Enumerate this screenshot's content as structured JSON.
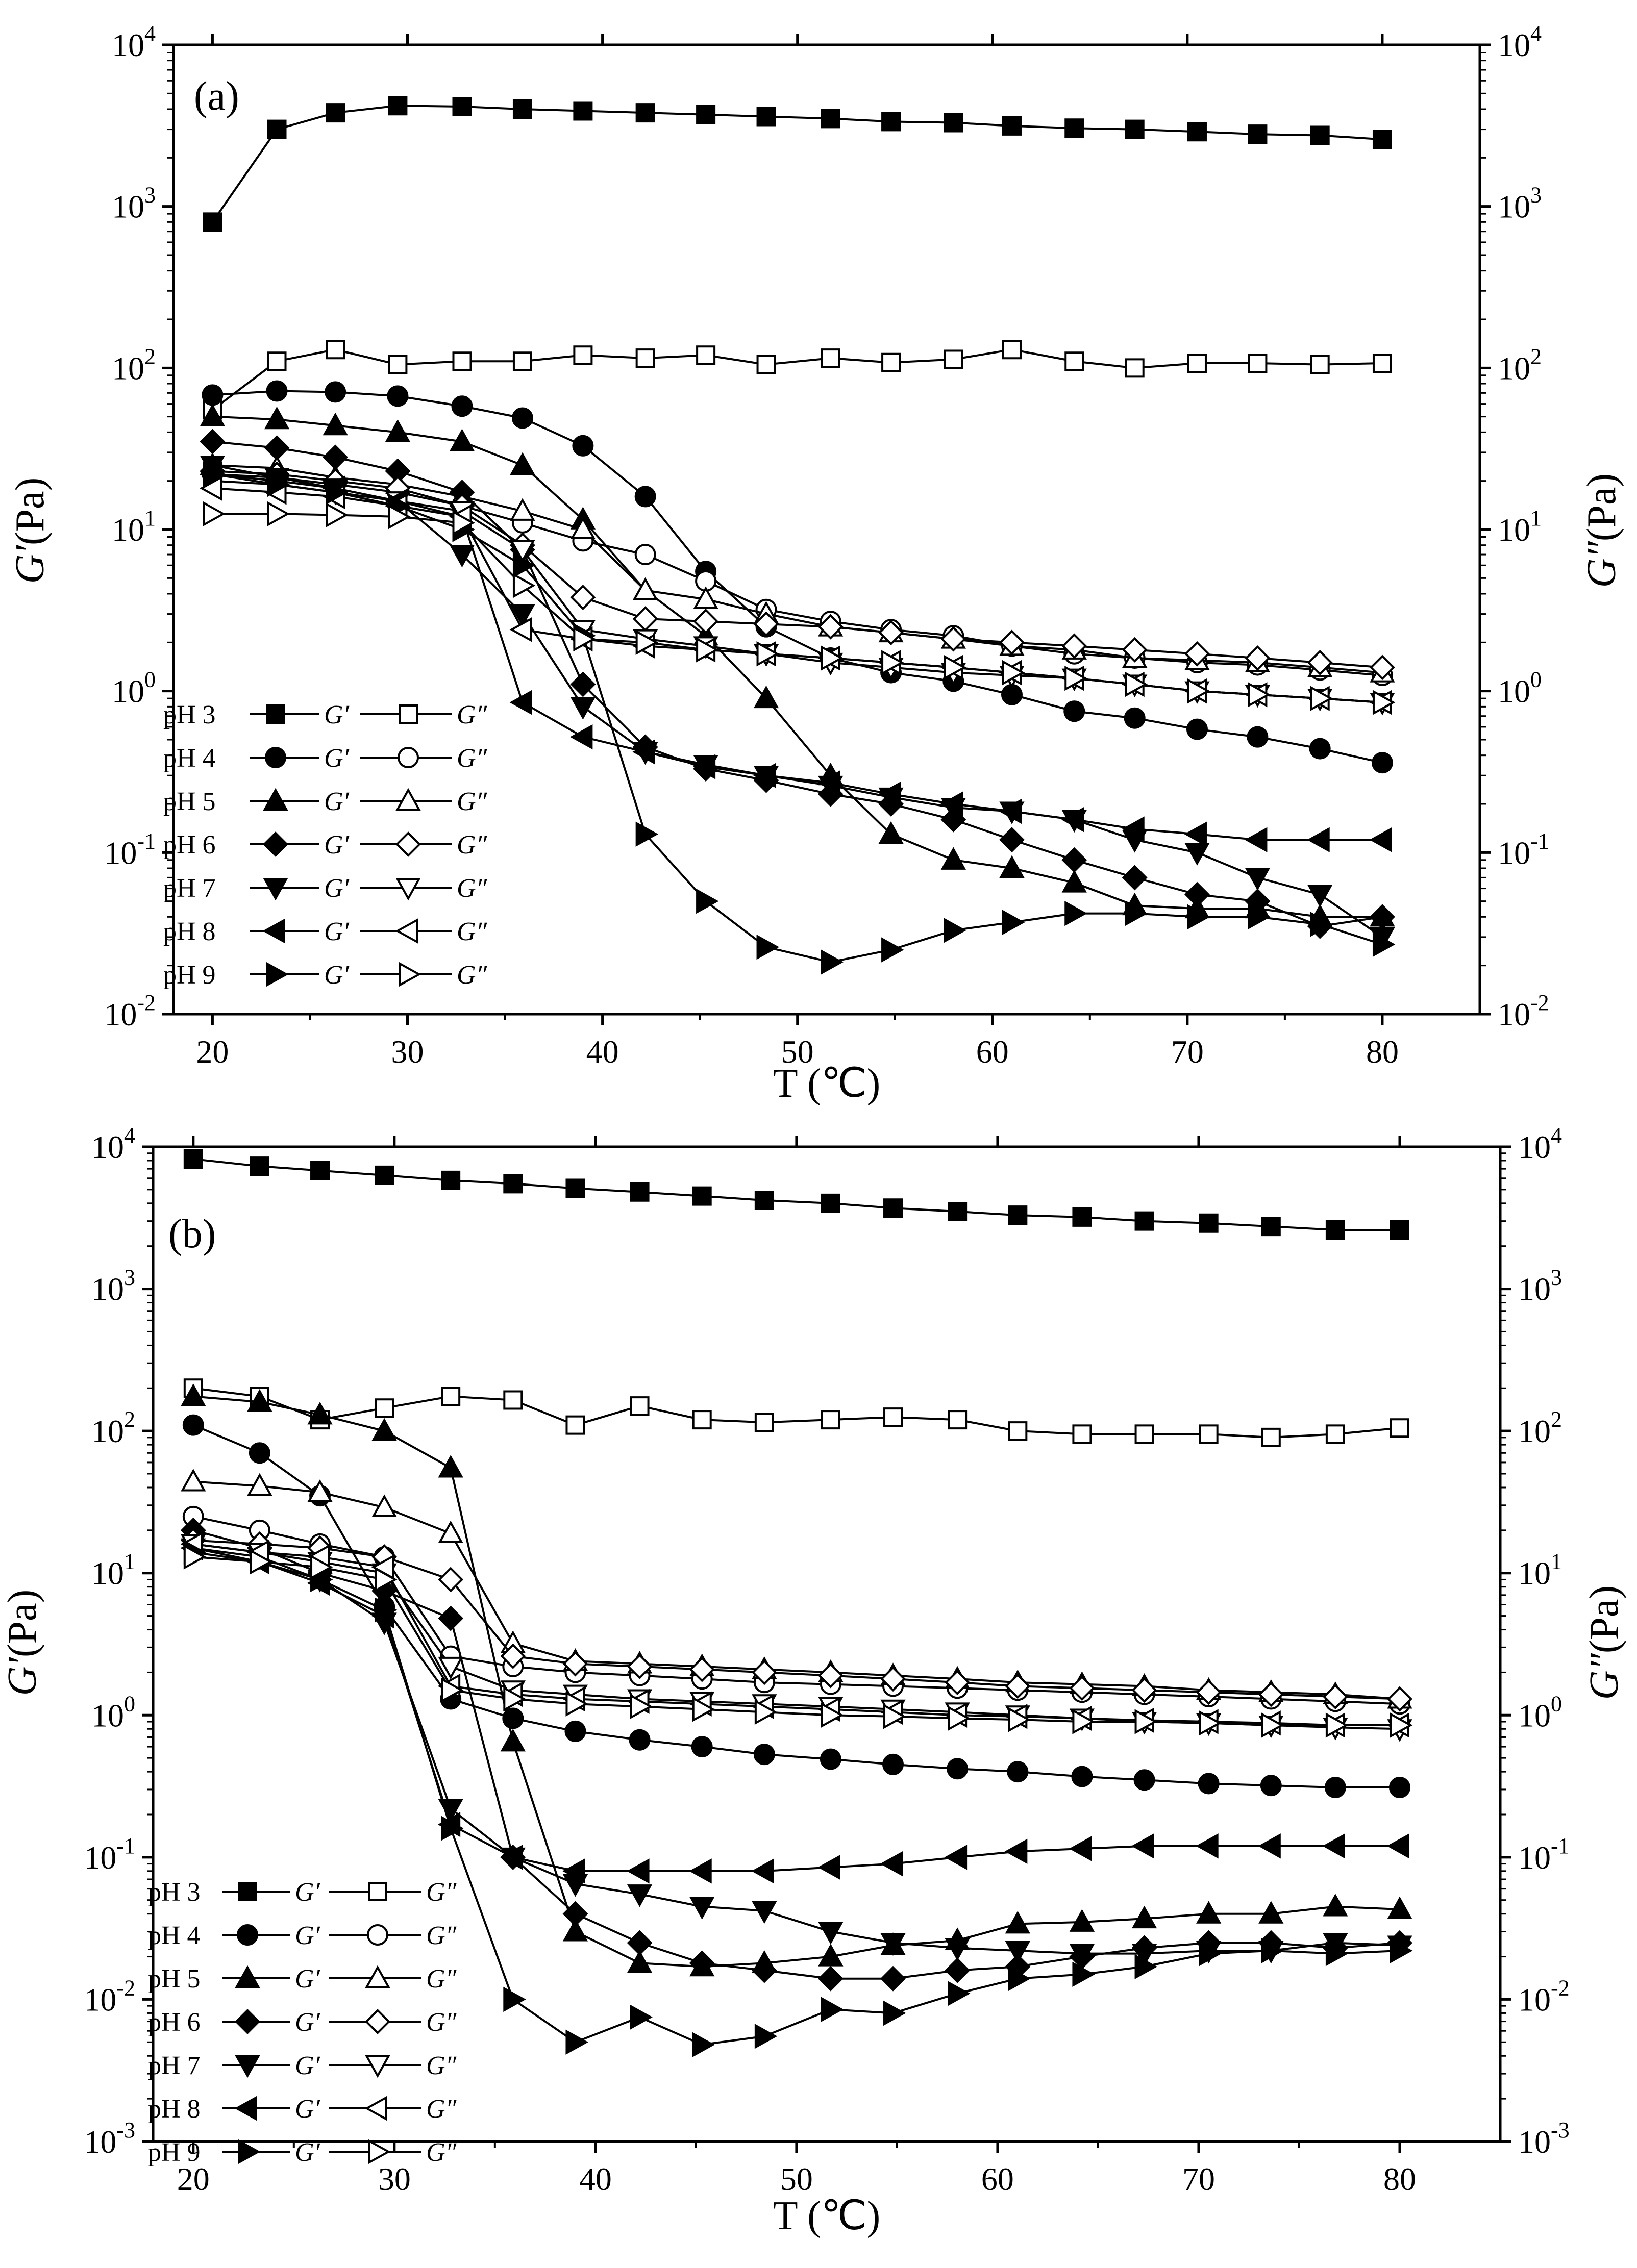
{
  "chart_data": [
    {
      "type": "line",
      "panel_label": "(a)",
      "xlabel": "T (℃)",
      "ylabel_left": {
        "sym": "G′",
        "unit": "(Pa)"
      },
      "ylabel_right": {
        "sym": "G″",
        "unit": "(Pa)"
      },
      "xlim": [
        18,
        85
      ],
      "ylim_log": [
        -2,
        4
      ],
      "yscale": "log",
      "xticks": [
        "20",
        "30",
        "40",
        "50",
        "60",
        "70",
        "80"
      ],
      "xtick_values": [
        20,
        30,
        40,
        50,
        60,
        70,
        80
      ],
      "yticks": [
        {
          "exp": -2,
          "base": "10",
          "sup": "-2"
        },
        {
          "exp": -1,
          "base": "10",
          "sup": "-1"
        },
        {
          "exp": 0,
          "base": "10",
          "sup": "0"
        },
        {
          "exp": 1,
          "base": "10",
          "sup": "1"
        },
        {
          "exp": 2,
          "base": "10",
          "sup": "2"
        },
        {
          "exp": 3,
          "base": "10",
          "sup": "3"
        },
        {
          "exp": 4,
          "base": "10",
          "sup": "4"
        }
      ],
      "legend_position": "lower-left",
      "legend": [
        {
          "label": "pH 3",
          "marker": "square"
        },
        {
          "label": "pH 4",
          "marker": "circle"
        },
        {
          "label": "pH 5",
          "marker": "tri-up"
        },
        {
          "label": "pH 6",
          "marker": "diamond"
        },
        {
          "label": "pH 7",
          "marker": "tri-down"
        },
        {
          "label": "pH 8",
          "marker": "tri-left"
        },
        {
          "label": "pH 9",
          "marker": "tri-right"
        }
      ],
      "legend_gp": "G′",
      "legend_gpp": "G″",
      "x": [
        20,
        23.3,
        26.3,
        29.5,
        32.8,
        35.9,
        39.0,
        42.2,
        45.3,
        48.4,
        51.7,
        54.8,
        58.0,
        61.0,
        64.2,
        67.3,
        70.5,
        73.6,
        76.8,
        80.0
      ],
      "series": [
        {
          "name": "pH 3 G′",
          "marker": "square",
          "filled": true,
          "values": [
            800,
            3000,
            3800,
            4200,
            4150,
            4000,
            3900,
            3800,
            3700,
            3600,
            3500,
            3350,
            3300,
            3150,
            3050,
            3000,
            2900,
            2800,
            2750,
            2600
          ]
        },
        {
          "name": "pH 3 G″",
          "marker": "square",
          "filled": false,
          "values": [
            55,
            110,
            130,
            105,
            110,
            110,
            120,
            115,
            120,
            105,
            115,
            108,
            113,
            130,
            110,
            100,
            107,
            107,
            105,
            107
          ]
        },
        {
          "name": "pH 4 G′",
          "marker": "circle",
          "filled": true,
          "values": [
            68,
            72,
            71,
            67,
            58,
            49,
            33,
            16,
            5.5,
            2.5,
            1.6,
            1.3,
            1.15,
            0.95,
            0.75,
            0.68,
            0.58,
            0.52,
            0.44,
            0.36
          ]
        },
        {
          "name": "pH 4 G″",
          "marker": "circle",
          "filled": false,
          "values": [
            22,
            21,
            19,
            17,
            14,
            11,
            8.5,
            7.0,
            4.8,
            3.2,
            2.7,
            2.4,
            2.2,
            1.9,
            1.7,
            1.6,
            1.5,
            1.45,
            1.35,
            1.25
          ]
        },
        {
          "name": "pH 5 G′",
          "marker": "tri-up",
          "filled": true,
          "values": [
            50,
            48,
            44,
            40,
            35,
            25,
            11.5,
            4.2,
            2.2,
            0.9,
            0.3,
            0.13,
            0.09,
            0.08,
            0.065,
            0.047,
            0.045,
            0.045,
            0.04,
            0.04
          ]
        },
        {
          "name": "pH 5 G″",
          "marker": "tri-up",
          "filled": false,
          "values": [
            25,
            24,
            21,
            19,
            16,
            13,
            10,
            4.2,
            3.7,
            3.0,
            2.5,
            2.3,
            2.1,
            1.9,
            1.8,
            1.6,
            1.55,
            1.5,
            1.4,
            1.3
          ]
        },
        {
          "name": "pH 6 G′",
          "marker": "diamond",
          "filled": true,
          "values": [
            35,
            32,
            28,
            23,
            17,
            7.5,
            1.1,
            0.45,
            0.33,
            0.28,
            0.23,
            0.2,
            0.16,
            0.12,
            0.09,
            0.07,
            0.055,
            0.05,
            0.035,
            0.04
          ]
        },
        {
          "name": "pH 6 G″",
          "marker": "diamond",
          "filled": false,
          "values": [
            23,
            22,
            20,
            18,
            14,
            8,
            3.8,
            2.8,
            2.7,
            2.6,
            2.5,
            2.3,
            2.1,
            2.0,
            1.9,
            1.8,
            1.7,
            1.6,
            1.5,
            1.4
          ]
        },
        {
          "name": "pH 7 G′",
          "marker": "tri-down",
          "filled": true,
          "values": [
            25,
            21,
            18,
            15,
            7.0,
            3.0,
            0.8,
            0.42,
            0.35,
            0.3,
            0.26,
            0.22,
            0.19,
            0.18,
            0.16,
            0.12,
            0.1,
            0.07,
            0.055,
            0.03
          ]
        },
        {
          "name": "pH 7 G″",
          "marker": "tri-down",
          "filled": false,
          "values": [
            20,
            19,
            17,
            15,
            13,
            7.5,
            2.4,
            2.1,
            1.9,
            1.7,
            1.5,
            1.4,
            1.3,
            1.25,
            1.2,
            1.1,
            1.0,
            0.95,
            0.9,
            0.85
          ]
        },
        {
          "name": "pH 8 G′",
          "marker": "tri-left",
          "filled": true,
          "values": [
            22,
            20,
            18,
            15,
            12,
            0.85,
            0.52,
            0.42,
            0.34,
            0.3,
            0.27,
            0.23,
            0.2,
            0.18,
            0.16,
            0.14,
            0.13,
            0.12,
            0.12,
            0.12
          ]
        },
        {
          "name": "pH 8 G″",
          "marker": "tri-left",
          "filled": false,
          "values": [
            18,
            17,
            16,
            14,
            12,
            2.4,
            2.1,
            1.9,
            1.8,
            1.7,
            1.6,
            1.5,
            1.4,
            1.3,
            1.2,
            1.1,
            1.0,
            0.95,
            0.9,
            0.85
          ]
        },
        {
          "name": "pH 9 G′",
          "marker": "tri-right",
          "filled": true,
          "values": [
            22,
            19,
            17,
            14,
            10,
            6.0,
            2.2,
            0.13,
            0.05,
            0.026,
            0.021,
            0.025,
            0.033,
            0.037,
            0.042,
            0.042,
            0.04,
            0.04,
            0.036,
            0.027
          ]
        },
        {
          "name": "pH 9 G″",
          "marker": "tri-right",
          "filled": false,
          "values": [
            12.5,
            12.5,
            12.3,
            12.0,
            11,
            4.5,
            2.1,
            2.0,
            1.8,
            1.7,
            1.6,
            1.5,
            1.4,
            1.3,
            1.2,
            1.1,
            1.0,
            0.95,
            0.9,
            0.85
          ]
        }
      ]
    },
    {
      "type": "line",
      "panel_label": "(b)",
      "xlabel": "T (℃)",
      "ylabel_left": {
        "sym": "G′",
        "unit": "(Pa)"
      },
      "ylabel_right": {
        "sym": "G″",
        "unit": "(Pa)"
      },
      "xlim": [
        18,
        85
      ],
      "ylim_log": [
        -3,
        4
      ],
      "yscale": "log",
      "xticks": [
        "20",
        "30",
        "40",
        "50",
        "60",
        "70",
        "80"
      ],
      "xtick_values": [
        20,
        30,
        40,
        50,
        60,
        70,
        80
      ],
      "yticks": [
        {
          "exp": -3,
          "base": "10",
          "sup": "-3"
        },
        {
          "exp": -2,
          "base": "10",
          "sup": "-2"
        },
        {
          "exp": -1,
          "base": "10",
          "sup": "-1"
        },
        {
          "exp": 0,
          "base": "10",
          "sup": "0"
        },
        {
          "exp": 1,
          "base": "10",
          "sup": "1"
        },
        {
          "exp": 2,
          "base": "10",
          "sup": "2"
        },
        {
          "exp": 3,
          "base": "10",
          "sup": "3"
        },
        {
          "exp": 4,
          "base": "10",
          "sup": "4"
        }
      ],
      "legend_position": "lower-left",
      "legend": [
        {
          "label": "pH 3",
          "marker": "square"
        },
        {
          "label": "pH 4",
          "marker": "circle"
        },
        {
          "label": "pH 5",
          "marker": "tri-up"
        },
        {
          "label": "pH 6",
          "marker": "diamond"
        },
        {
          "label": "pH 7",
          "marker": "tri-down"
        },
        {
          "label": "pH 8",
          "marker": "tri-left"
        },
        {
          "label": "pH 9",
          "marker": "tri-right"
        }
      ],
      "legend_gp": "G′",
      "legend_gpp": "G″",
      "x": [
        20,
        23.3,
        26.3,
        29.5,
        32.8,
        35.9,
        39.0,
        42.2,
        45.3,
        48.4,
        51.7,
        54.8,
        58.0,
        61.0,
        64.2,
        67.3,
        70.5,
        73.6,
        76.8,
        80.0
      ],
      "series": [
        {
          "name": "pH 3 G′",
          "marker": "square",
          "filled": true,
          "values": [
            8200,
            7300,
            6800,
            6300,
            5800,
            5500,
            5100,
            4800,
            4500,
            4200,
            4000,
            3700,
            3500,
            3300,
            3200,
            3000,
            2900,
            2750,
            2600,
            2600
          ]
        },
        {
          "name": "pH 3 G″",
          "marker": "square",
          "filled": false,
          "values": [
            200,
            175,
            120,
            145,
            175,
            165,
            110,
            150,
            120,
            115,
            120,
            125,
            120,
            100,
            95,
            95,
            95,
            90,
            95,
            105
          ]
        },
        {
          "name": "pH 4 G′",
          "marker": "circle",
          "filled": true,
          "values": [
            110,
            70,
            35,
            5.8,
            1.3,
            0.95,
            0.77,
            0.67,
            0.6,
            0.53,
            0.49,
            0.45,
            0.42,
            0.4,
            0.37,
            0.35,
            0.33,
            0.32,
            0.31,
            0.31
          ]
        },
        {
          "name": "pH 4 G″",
          "marker": "circle",
          "filled": false,
          "values": [
            25,
            20,
            16,
            13,
            2.6,
            2.2,
            2.0,
            1.9,
            1.8,
            1.7,
            1.65,
            1.6,
            1.55,
            1.5,
            1.45,
            1.4,
            1.35,
            1.3,
            1.25,
            1.2
          ]
        },
        {
          "name": "pH 5 G′",
          "marker": "tri-up",
          "filled": true,
          "values": [
            175,
            160,
            130,
            100,
            55,
            0.65,
            0.03,
            0.018,
            0.017,
            0.018,
            0.02,
            0.024,
            0.026,
            0.034,
            0.035,
            0.037,
            0.04,
            0.04,
            0.045,
            0.043
          ]
        },
        {
          "name": "pH 5 G″",
          "marker": "tri-up",
          "filled": false,
          "values": [
            44,
            41,
            37,
            29,
            19,
            3.2,
            2.4,
            2.3,
            2.2,
            2.1,
            2.0,
            1.9,
            1.8,
            1.7,
            1.65,
            1.6,
            1.5,
            1.45,
            1.4,
            1.3
          ]
        },
        {
          "name": "pH 6 G′",
          "marker": "diamond",
          "filled": true,
          "values": [
            20,
            15,
            10,
            7.5,
            4.8,
            0.1,
            0.04,
            0.025,
            0.018,
            0.016,
            0.014,
            0.014,
            0.016,
            0.017,
            0.02,
            0.023,
            0.025,
            0.025,
            0.023,
            0.025
          ]
        },
        {
          "name": "pH 6 G″",
          "marker": "diamond",
          "filled": false,
          "values": [
            17,
            16,
            15,
            13,
            9.0,
            2.6,
            2.3,
            2.2,
            2.1,
            2.0,
            1.9,
            1.8,
            1.7,
            1.6,
            1.55,
            1.5,
            1.45,
            1.4,
            1.35,
            1.3
          ]
        },
        {
          "name": "pH 7 G′",
          "marker": "tri-down",
          "filled": true,
          "values": [
            15,
            13,
            9.0,
            4.5,
            0.22,
            0.1,
            0.065,
            0.055,
            0.045,
            0.042,
            0.03,
            0.025,
            0.023,
            0.022,
            0.021,
            0.021,
            0.022,
            0.022,
            0.025,
            0.024
          ]
        },
        {
          "name": "pH 7 G″",
          "marker": "tri-down",
          "filled": false,
          "values": [
            16,
            14,
            12,
            10,
            2.2,
            1.5,
            1.4,
            1.3,
            1.25,
            1.2,
            1.15,
            1.1,
            1.05,
            1.0,
            0.95,
            0.9,
            0.88,
            0.85,
            0.82,
            0.8
          ]
        },
        {
          "name": "pH 8 G′",
          "marker": "tri-left",
          "filled": true,
          "values": [
            15,
            12,
            8.5,
            5.0,
            0.17,
            0.1,
            0.08,
            0.08,
            0.08,
            0.08,
            0.085,
            0.09,
            0.1,
            0.11,
            0.115,
            0.12,
            0.12,
            0.12,
            0.12,
            0.12
          ]
        },
        {
          "name": "pH 8 G″",
          "marker": "tri-left",
          "filled": false,
          "values": [
            16,
            14,
            13,
            11,
            1.6,
            1.4,
            1.3,
            1.25,
            1.2,
            1.15,
            1.1,
            1.05,
            1.0,
            0.98,
            0.95,
            0.92,
            0.9,
            0.88,
            0.85,
            0.85
          ]
        },
        {
          "name": "pH 9 G′",
          "marker": "tri-right",
          "filled": true,
          "values": [
            14,
            12,
            9.0,
            5.5,
            0.16,
            0.01,
            0.005,
            0.0075,
            0.0048,
            0.0055,
            0.0085,
            0.008,
            0.011,
            0.014,
            0.015,
            0.017,
            0.021,
            0.022,
            0.021,
            0.022
          ]
        },
        {
          "name": "pH 9 G″",
          "marker": "tri-right",
          "filled": false,
          "values": [
            13,
            12,
            11,
            9.0,
            1.5,
            1.3,
            1.2,
            1.15,
            1.1,
            1.05,
            1.0,
            0.98,
            0.95,
            0.93,
            0.9,
            0.9,
            0.88,
            0.85,
            0.85,
            0.85
          ]
        }
      ]
    }
  ]
}
